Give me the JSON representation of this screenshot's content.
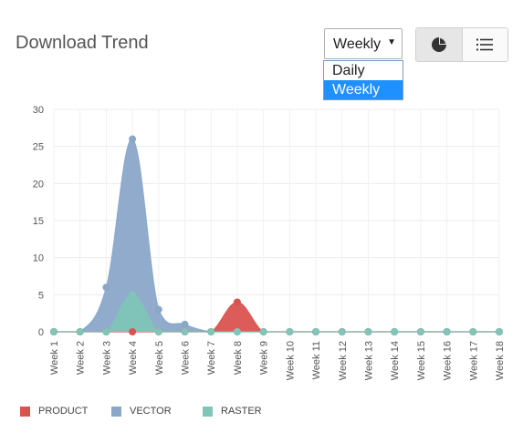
{
  "header": {
    "title": "Download Trend",
    "period_select": {
      "value": "Weekly",
      "options": [
        "Daily",
        "Weekly"
      ],
      "selected": "Weekly"
    },
    "view_buttons": [
      {
        "icon": "pie-chart-icon",
        "active": true
      },
      {
        "icon": "list-icon",
        "active": false
      }
    ]
  },
  "chart_data": {
    "type": "area",
    "categories": [
      "Week 1",
      "Week 2",
      "Week 3",
      "Week 4",
      "Week 5",
      "Week 6",
      "Week 7",
      "Week 8",
      "Week 9",
      "Week 10",
      "Week 11",
      "Week 12",
      "Week 13",
      "Week 14",
      "Week 15",
      "Week 16",
      "Week 17",
      "Week 18"
    ],
    "ylim": [
      0,
      30
    ],
    "yticks": [
      0,
      5,
      10,
      15,
      20,
      25,
      30
    ],
    "grid": true,
    "legend_position": "bottom-left",
    "series": [
      {
        "name": "PRODUCT",
        "color": "#d9534f",
        "values": [
          0,
          0,
          0,
          0,
          0,
          0,
          0,
          4,
          0,
          0,
          0,
          0,
          0,
          0,
          0,
          0,
          0,
          0
        ]
      },
      {
        "name": "VECTOR",
        "color": "#8aa6c8",
        "values": [
          0,
          0,
          6,
          26,
          3,
          1,
          0,
          0,
          0,
          0,
          0,
          0,
          0,
          0,
          0,
          0,
          0,
          0
        ]
      },
      {
        "name": "RASTER",
        "color": "#80c5b7",
        "values": [
          0,
          0,
          0,
          5,
          0,
          0,
          0,
          0,
          0,
          0,
          0,
          0,
          0,
          0,
          0,
          0,
          0,
          0
        ]
      }
    ]
  }
}
